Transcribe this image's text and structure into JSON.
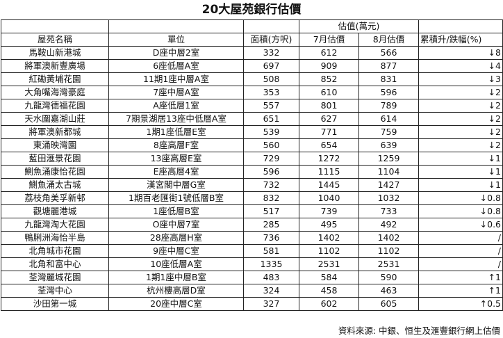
{
  "title": "20大屋苑銀行估價",
  "header": {
    "estate": "屋苑名稱",
    "unit": "單位",
    "area": "面積(方呎)",
    "valuation_group": "估值(萬元)",
    "july": "7月估價",
    "august": "8月估價",
    "change": "累積升/跌幅(%)"
  },
  "rows": [
    {
      "estate": "馬鞍山新港城",
      "unit": "D座中層2室",
      "area": "332",
      "july": "612",
      "august": "566",
      "change": "↓8"
    },
    {
      "estate": "將軍澳新豐廣場",
      "unit": "6座低層A室",
      "area": "697",
      "july": "909",
      "august": "877",
      "change": "↓4"
    },
    {
      "estate": "紅磡黃埔花園",
      "unit": "11期1座中層A室",
      "area": "508",
      "july": "852",
      "august": "831",
      "change": "↓3"
    },
    {
      "estate": "大角嘴海灣豪庭",
      "unit": "7座中層A室",
      "area": "353",
      "july": "610",
      "august": "596",
      "change": "↓2"
    },
    {
      "estate": "九龍灣德福花園",
      "unit": "A座低層1室",
      "area": "557",
      "july": "801",
      "august": "789",
      "change": "↓2"
    },
    {
      "estate": "天水圍嘉湖山莊",
      "unit": "7期景湖居13座中低層A室",
      "area": "651",
      "july": "627",
      "august": "614",
      "change": "↓2"
    },
    {
      "estate": "將軍澳新都城",
      "unit": "1期1座低層E室",
      "area": "539",
      "july": "771",
      "august": "759",
      "change": "↓2"
    },
    {
      "estate": "東涌映灣園",
      "unit": "8座高層F室",
      "area": "560",
      "july": "654",
      "august": "639",
      "change": "↓2"
    },
    {
      "estate": "藍田滙景花園",
      "unit": "13座高層E室",
      "area": "729",
      "july": "1272",
      "august": "1259",
      "change": "↓1"
    },
    {
      "estate": "鰂魚涌康怡花園",
      "unit": "E座高層4室",
      "area": "596",
      "july": "1115",
      "august": "1104",
      "change": "↓1"
    },
    {
      "estate": "鰂魚涌太古城",
      "unit": "漢宮閣中層G室",
      "area": "732",
      "july": "1445",
      "august": "1427",
      "change": "↓1"
    },
    {
      "estate": "荔枝角美孚新邨",
      "unit": "1期百老匯街1號低層B室",
      "area": "832",
      "july": "1040",
      "august": "1032",
      "change": "↓0.8"
    },
    {
      "estate": "觀塘麗港城",
      "unit": "1座低層B室",
      "area": "517",
      "july": "739",
      "august": "733",
      "change": "↓0.8"
    },
    {
      "estate": "九龍灣淘大花園",
      "unit": "O座中層7室",
      "area": "285",
      "july": "495",
      "august": "492",
      "change": "↓0.6"
    },
    {
      "estate": "鴨脷洲海怡半島",
      "unit": "28座高層H室",
      "area": "736",
      "july": "1402",
      "august": "1402",
      "change": "/"
    },
    {
      "estate": "北角城市花園",
      "unit": "9座中層C室",
      "area": "581",
      "july": "1102",
      "august": "1102",
      "change": "/"
    },
    {
      "estate": "北角和富中心",
      "unit": "10座低層A室",
      "area": "1335",
      "july": "2531",
      "august": "2531",
      "change": "/"
    },
    {
      "estate": "荃灣麗城花園",
      "unit": "1期1座中層B室",
      "area": "483",
      "july": "584",
      "august": "590",
      "change": "↑1"
    },
    {
      "estate": "荃灣中心",
      "unit": "杭州樓高層D室",
      "area": "324",
      "july": "458",
      "august": "463",
      "change": "↑1"
    },
    {
      "estate": "沙田第一城",
      "unit": "20座中層C室",
      "area": "327",
      "july": "602",
      "august": "605",
      "change": "↑0.5"
    }
  ],
  "source_note": "資料來源: 中銀、恒生及滙豐銀行網上估價"
}
